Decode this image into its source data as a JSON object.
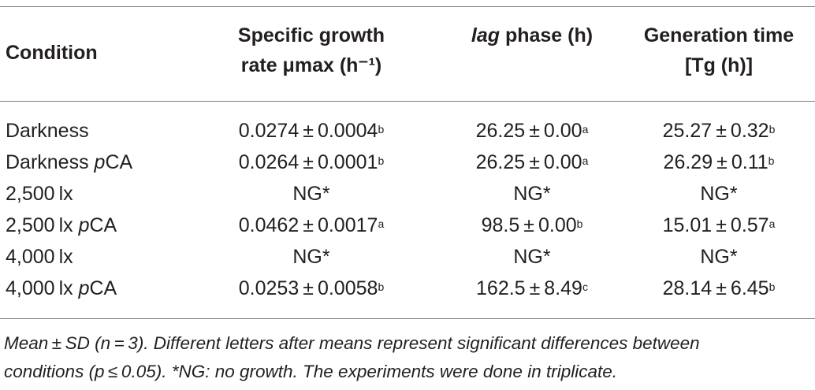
{
  "header": {
    "condition": "Condition",
    "growth_line1": "Specific growth",
    "growth_line2": "rate μmax (h⁻¹)",
    "lag_italic": "lag",
    "lag_rest": " phase (h)",
    "gen_line1": "Generation time",
    "gen_line2": "[Tg (h)]"
  },
  "rows": [
    {
      "cond": "Darkness",
      "cond_it": "",
      "cond_rest": "",
      "mu": "0.0274 ± 0.0004",
      "mu_sup": "b",
      "lag": "26.25 ± 0.00",
      "lag_sup": "a",
      "tg": "25.27 ± 0.32",
      "tg_sup": "b"
    },
    {
      "cond": "Darkness ",
      "cond_it": "p",
      "cond_rest": "CA",
      "mu": "0.0264 ± 0.0001",
      "mu_sup": "b",
      "lag": "26.25 ± 0.00",
      "lag_sup": "a",
      "tg": "26.29 ± 0.11",
      "tg_sup": "b"
    },
    {
      "cond": "2,500 lx",
      "cond_it": "",
      "cond_rest": "",
      "mu": "NG*",
      "mu_sup": "",
      "lag": "NG*",
      "lag_sup": "",
      "tg": "NG*",
      "tg_sup": ""
    },
    {
      "cond": "2,500 lx ",
      "cond_it": "p",
      "cond_rest": "CA",
      "mu": "0.0462 ± 0.0017",
      "mu_sup": "a",
      "lag": "98.5 ± 0.00",
      "lag_sup": "b",
      "tg": "15.01 ± 0.57",
      "tg_sup": "a"
    },
    {
      "cond": "4,000 lx",
      "cond_it": "",
      "cond_rest": "",
      "mu": "NG*",
      "mu_sup": "",
      "lag": "NG*",
      "lag_sup": "",
      "tg": "NG*",
      "tg_sup": ""
    },
    {
      "cond": "4,000 lx ",
      "cond_it": "p",
      "cond_rest": "CA",
      "mu": "0.0253 ± 0.0058",
      "mu_sup": "b",
      "lag": "162.5 ± 8.49",
      "lag_sup": "c",
      "tg": "28.14 ± 6.45",
      "tg_sup": "b"
    }
  ],
  "footnote": {
    "line1": "Mean ± SD (n = 3). Different letters after means represent significant differences between",
    "line2": "conditions (p ≤ 0.05). *NG: no growth. The experiments were done in triplicate."
  }
}
